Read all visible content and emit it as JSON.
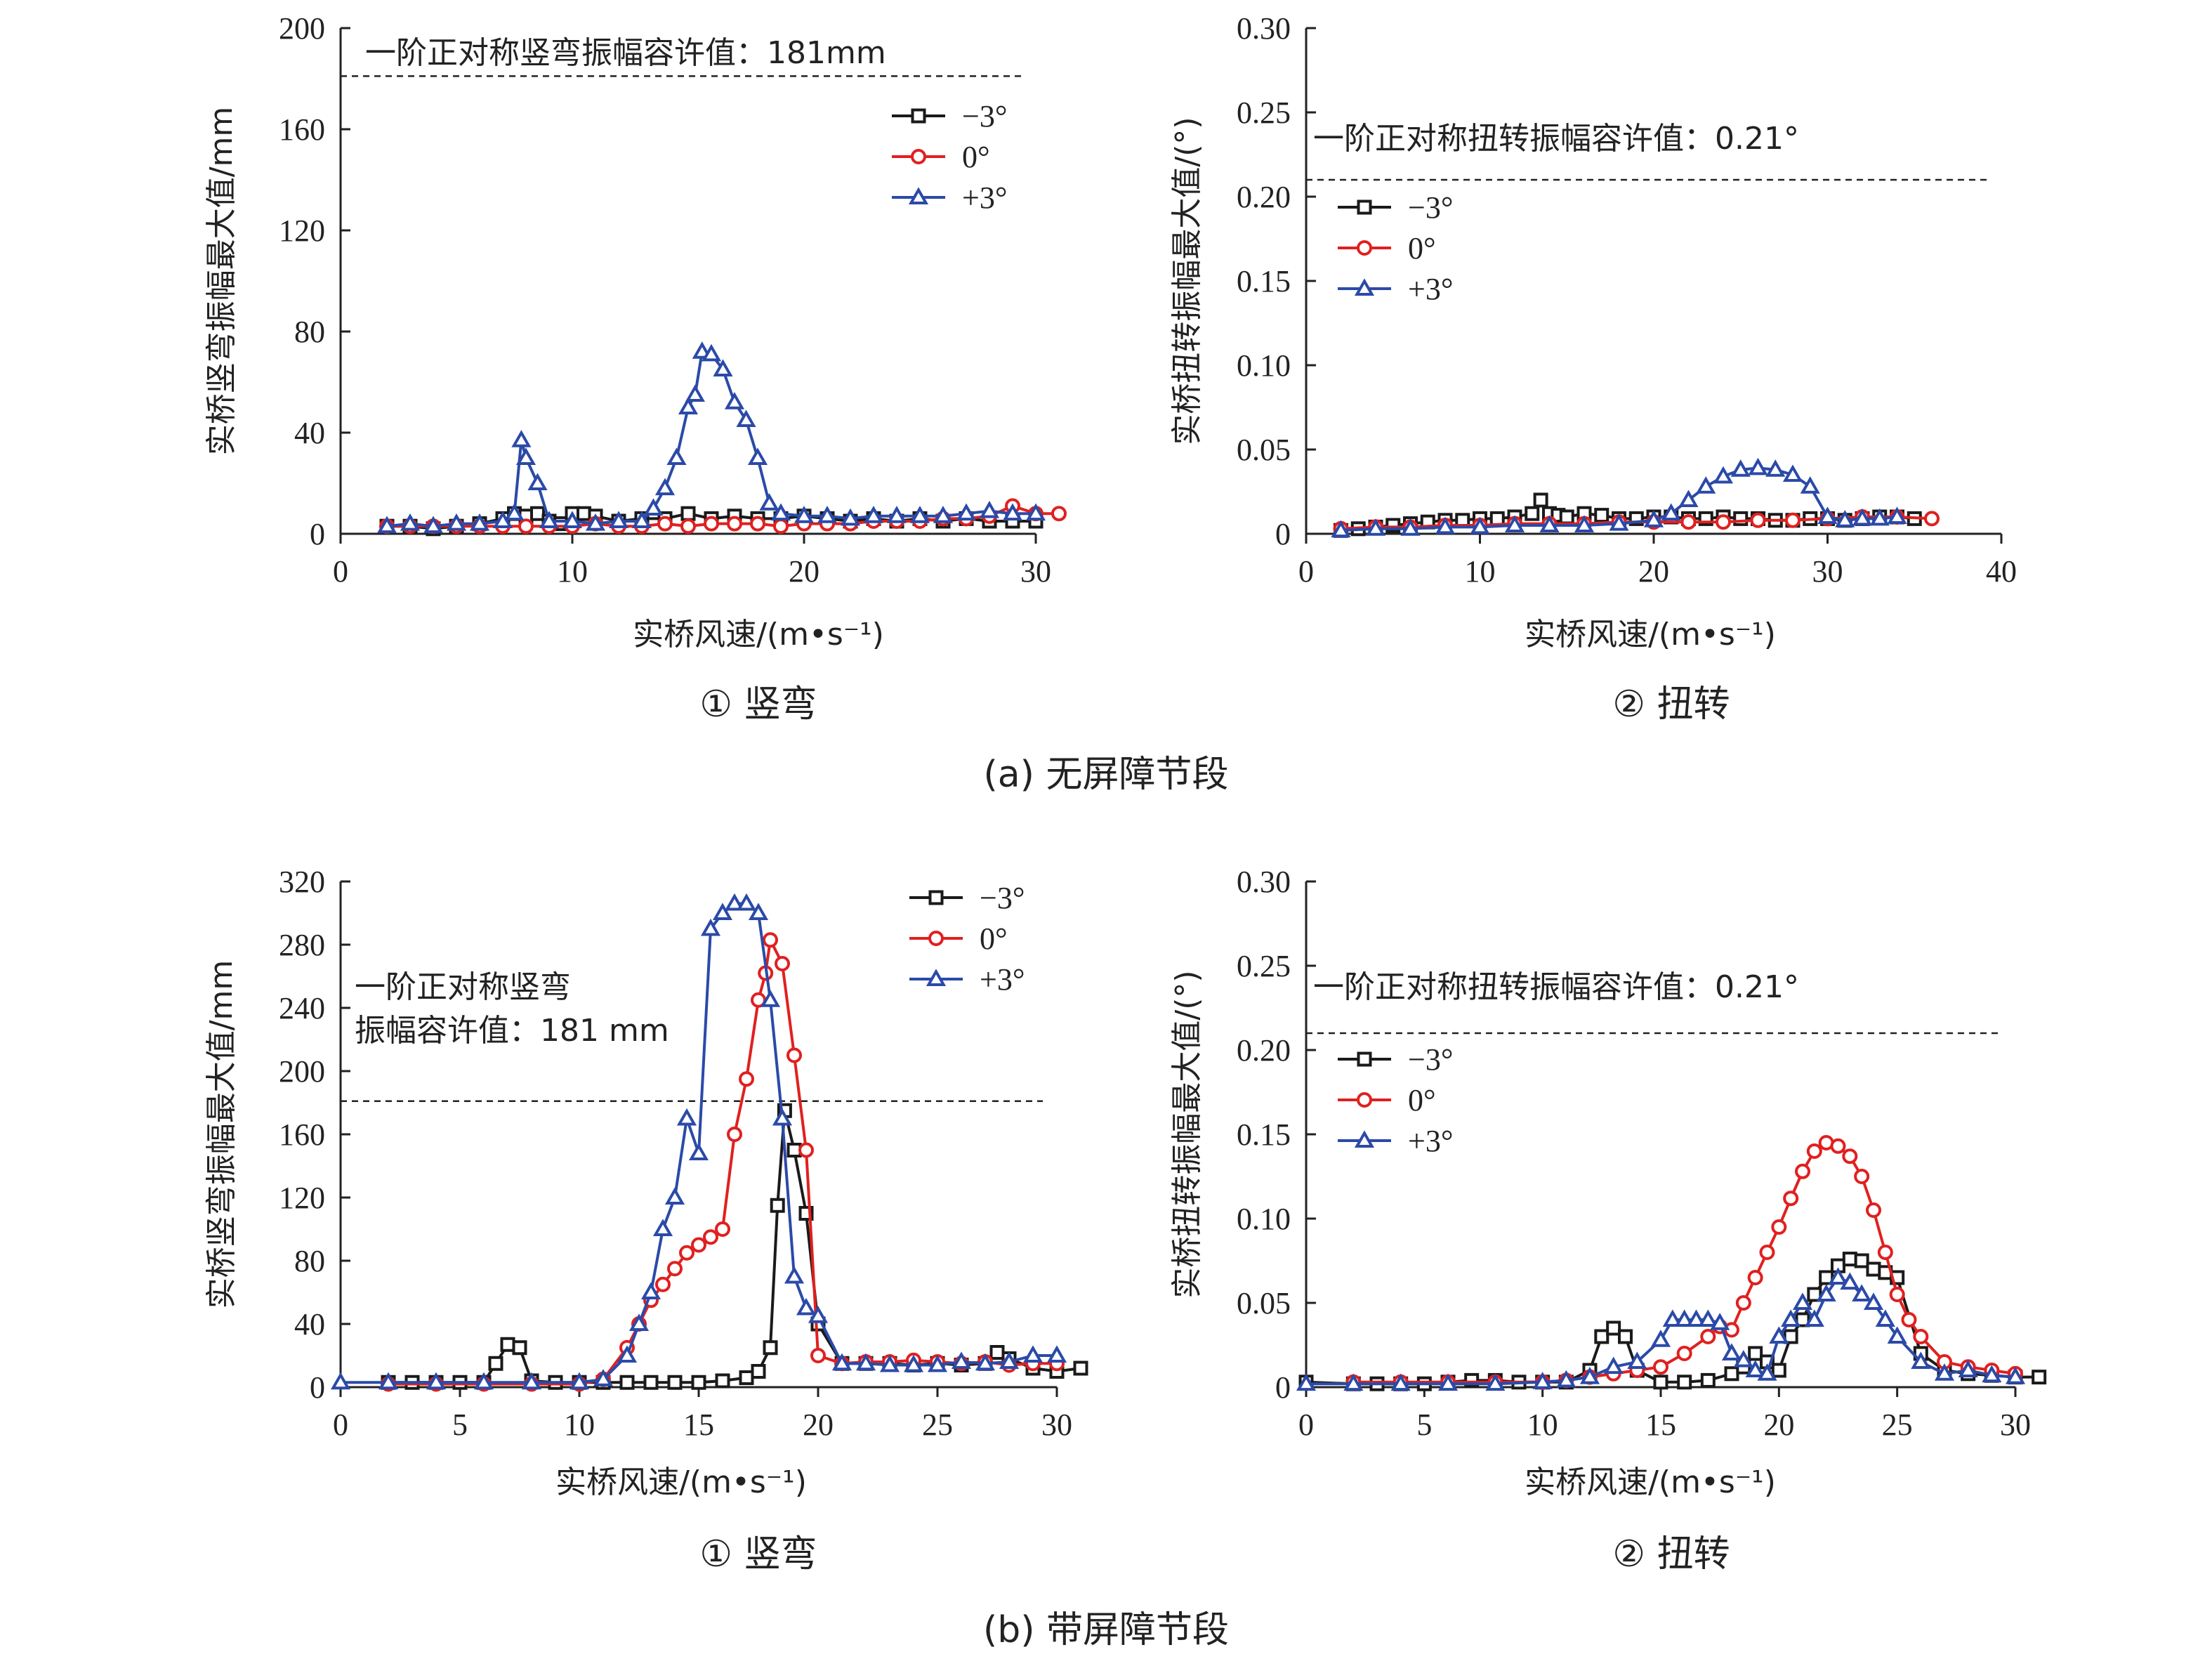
{
  "figure": {
    "caption_a": "(a) 无屏障节段",
    "caption_b": "(b) 带屏障节段"
  },
  "chart_data": [
    {
      "type": "line",
      "panel": "a1",
      "subtitle": "① 竖弯",
      "xlabel": "实桥风速/(m•s⁻¹)",
      "ylabel": "实桥竖弯振幅最大值/mm",
      "xlim": [
        0,
        30
      ],
      "ylim": [
        0,
        200
      ],
      "xticks": [
        0,
        10,
        20,
        30
      ],
      "yticks": [
        0,
        40,
        80,
        120,
        160,
        200
      ],
      "threshold": {
        "value": 181,
        "label": "一阶正对称竖弯振幅容许值：181mm"
      },
      "legend_position": "top-right",
      "series": [
        {
          "name": "−3°",
          "color": "#1a1a1a",
          "marker": "square",
          "x": [
            2,
            3,
            4,
            5,
            6,
            7,
            7.5,
            8,
            8.5,
            9,
            9.5,
            10,
            10.5,
            11,
            12,
            13,
            14,
            15,
            16,
            17,
            18,
            19,
            20,
            21,
            22,
            23,
            24,
            25,
            26,
            27,
            28,
            29,
            30
          ],
          "y": [
            3,
            3,
            2,
            3,
            4,
            6,
            8,
            7,
            8,
            5,
            4,
            8,
            8,
            7,
            5,
            6,
            6,
            8,
            6,
            7,
            6,
            6,
            7,
            6,
            5,
            6,
            5,
            6,
            5,
            6,
            5,
            5,
            5
          ]
        },
        {
          "name": "0°",
          "color": "#e02020",
          "marker": "circle",
          "x": [
            2,
            3,
            4,
            5,
            6,
            7,
            8,
            9,
            10,
            11,
            12,
            13,
            14,
            15,
            16,
            17,
            18,
            19,
            20,
            21,
            22,
            23,
            24,
            25,
            26,
            27,
            28,
            29,
            30,
            31
          ],
          "y": [
            3,
            3,
            3,
            3,
            3,
            3,
            3,
            3,
            3,
            4,
            3,
            3,
            4,
            3,
            4,
            4,
            4,
            3,
            4,
            4,
            4,
            5,
            5,
            5,
            6,
            6,
            7,
            11,
            8,
            8
          ]
        },
        {
          "name": "+3°",
          "color": "#2b4aa8",
          "marker": "triangle",
          "x": [
            2,
            3,
            4,
            5,
            6,
            7,
            7.5,
            7.8,
            8,
            8.5,
            9,
            10,
            11,
            12,
            13,
            13.5,
            14,
            14.5,
            15,
            15.3,
            15.6,
            16,
            16.5,
            17,
            17.5,
            18,
            18.5,
            19,
            20,
            21,
            22,
            23,
            24,
            25,
            26,
            27,
            28,
            29,
            30
          ],
          "y": [
            3,
            4,
            3,
            4,
            4,
            5,
            8,
            37,
            30,
            20,
            5,
            5,
            4,
            5,
            5,
            10,
            18,
            30,
            50,
            55,
            72,
            71,
            65,
            52,
            45,
            30,
            12,
            8,
            7,
            7,
            6,
            7,
            7,
            7,
            7,
            8,
            9,
            8,
            8
          ]
        }
      ]
    },
    {
      "type": "line",
      "panel": "a2",
      "subtitle": "② 扭转",
      "xlabel": "实桥风速/(m•s⁻¹)",
      "ylabel": "实桥扭转振幅最大值/(°)",
      "xlim": [
        0,
        40
      ],
      "ylim": [
        0,
        0.3
      ],
      "xticks": [
        0,
        10,
        20,
        30,
        40
      ],
      "yticks": [
        0,
        0.05,
        0.1,
        0.15,
        0.2,
        0.25,
        0.3
      ],
      "ytick_labels": [
        "0",
        "0.05",
        "0.10",
        "0.15",
        "0.20",
        "0.25",
        "0.30"
      ],
      "threshold": {
        "value": 0.21,
        "label": "一阶正对称扭转振幅容许值：0.21°"
      },
      "legend_position": "top-left",
      "series": [
        {
          "name": "−3°",
          "color": "#1a1a1a",
          "marker": "square",
          "x": [
            2,
            3,
            4,
            5,
            6,
            7,
            8,
            9,
            10,
            11,
            12,
            13,
            13.5,
            14,
            14.5,
            15,
            16,
            17,
            18,
            19,
            20,
            21,
            22,
            23,
            24,
            25,
            26,
            27,
            28,
            29,
            30,
            31,
            32,
            33,
            34,
            35
          ],
          "y": [
            0.002,
            0.003,
            0.004,
            0.005,
            0.006,
            0.007,
            0.008,
            0.008,
            0.009,
            0.009,
            0.01,
            0.012,
            0.02,
            0.012,
            0.011,
            0.01,
            0.012,
            0.011,
            0.009,
            0.009,
            0.01,
            0.01,
            0.009,
            0.009,
            0.01,
            0.009,
            0.009,
            0.008,
            0.008,
            0.009,
            0.009,
            0.008,
            0.009,
            0.01,
            0.01,
            0.009
          ]
        },
        {
          "name": "0°",
          "color": "#e02020",
          "marker": "circle",
          "x": [
            2,
            4,
            6,
            8,
            10,
            12,
            14,
            16,
            18,
            20,
            22,
            24,
            26,
            28,
            30,
            32,
            34,
            36
          ],
          "y": [
            0.003,
            0.004,
            0.004,
            0.005,
            0.005,
            0.006,
            0.006,
            0.006,
            0.007,
            0.007,
            0.007,
            0.007,
            0.008,
            0.008,
            0.009,
            0.01,
            0.01,
            0.009
          ]
        },
        {
          "name": "+3°",
          "color": "#2b4aa8",
          "marker": "triangle",
          "x": [
            2,
            4,
            6,
            8,
            10,
            12,
            14,
            16,
            18,
            20,
            21,
            22,
            23,
            24,
            25,
            26,
            27,
            28,
            29,
            30,
            31,
            32,
            33,
            34
          ],
          "y": [
            0.002,
            0.003,
            0.003,
            0.004,
            0.004,
            0.005,
            0.005,
            0.005,
            0.006,
            0.008,
            0.012,
            0.02,
            0.028,
            0.034,
            0.038,
            0.039,
            0.038,
            0.035,
            0.028,
            0.01,
            0.008,
            0.009,
            0.009,
            0.01
          ]
        }
      ]
    },
    {
      "type": "line",
      "panel": "b1",
      "subtitle": "① 竖弯",
      "xlabel": "实桥风速/(m•s⁻¹)",
      "ylabel": "实桥竖弯振幅最大值/mm",
      "xlim": [
        0,
        30
      ],
      "ylim": [
        0,
        320
      ],
      "xticks": [
        0,
        5,
        10,
        15,
        20,
        25,
        30
      ],
      "yticks": [
        0,
        40,
        80,
        120,
        160,
        200,
        240,
        280,
        320
      ],
      "threshold": {
        "value": 181,
        "label_line1": "一阶正对称竖弯",
        "label_line2": "振幅容许值：181 mm"
      },
      "legend_position": "top-right",
      "series": [
        {
          "name": "−3°",
          "color": "#1a1a1a",
          "marker": "square",
          "x": [
            2,
            3,
            4,
            5,
            6,
            6.5,
            7,
            7.5,
            8,
            9,
            10,
            11,
            12,
            13,
            14,
            15,
            16,
            17,
            17.5,
            18,
            18.3,
            18.6,
            19,
            19.5,
            20,
            21,
            22,
            23,
            24,
            25,
            26,
            27,
            27.5,
            28,
            29,
            30,
            31
          ],
          "y": [
            3,
            3,
            3,
            3,
            3,
            15,
            27,
            25,
            4,
            3,
            3,
            3,
            3,
            3,
            3,
            3,
            4,
            6,
            10,
            25,
            115,
            175,
            150,
            110,
            40,
            15,
            15,
            15,
            14,
            15,
            14,
            15,
            22,
            18,
            12,
            10,
            12
          ]
        },
        {
          "name": "0°",
          "color": "#e02020",
          "marker": "circle",
          "x": [
            2,
            4,
            6,
            8,
            10,
            11,
            12,
            12.5,
            13,
            13.5,
            14,
            14.5,
            15,
            15.5,
            16,
            16.5,
            17,
            17.5,
            17.8,
            18,
            18.5,
            19,
            19.5,
            20,
            21,
            22,
            23,
            24,
            25,
            26,
            27,
            28,
            29,
            30
          ],
          "y": [
            2,
            2,
            2,
            2,
            2,
            5,
            25,
            40,
            55,
            65,
            75,
            85,
            90,
            95,
            100,
            160,
            195,
            245,
            262,
            283,
            268,
            210,
            150,
            20,
            15,
            16,
            16,
            17,
            16,
            15,
            16,
            14,
            15,
            15
          ]
        },
        {
          "name": "+3°",
          "color": "#2b4aa8",
          "marker": "triangle",
          "x": [
            0,
            2,
            4,
            6,
            8,
            10,
            11,
            12,
            12.5,
            13,
            13.5,
            14,
            14.5,
            15,
            15.5,
            16,
            16.5,
            17,
            17.5,
            18,
            18.5,
            19,
            19.5,
            20,
            21,
            22,
            23,
            24,
            25,
            26,
            27,
            28,
            29,
            30
          ],
          "y": [
            3,
            3,
            3,
            3,
            3,
            3,
            5,
            20,
            40,
            60,
            100,
            120,
            170,
            148,
            290,
            300,
            306,
            306,
            300,
            245,
            170,
            70,
            50,
            45,
            15,
            15,
            14,
            14,
            14,
            16,
            15,
            16,
            20,
            20
          ]
        }
      ]
    },
    {
      "type": "line",
      "panel": "b2",
      "subtitle": "② 扭转",
      "xlabel": "实桥风速/(m•s⁻¹)",
      "ylabel": "实桥扭转振幅最大值/(°)",
      "xlim": [
        0,
        30
      ],
      "ylim": [
        0,
        0.3
      ],
      "xticks": [
        0,
        5,
        10,
        15,
        20,
        25,
        30
      ],
      "yticks": [
        0,
        0.05,
        0.1,
        0.15,
        0.2,
        0.25,
        0.3
      ],
      "ytick_labels": [
        "0",
        "0.05",
        "0.10",
        "0.15",
        "0.20",
        "0.25",
        "0.30"
      ],
      "threshold": {
        "value": 0.21,
        "label": "一阶正对称扭转振幅容许值：0.21°"
      },
      "legend_position": "top-left",
      "series": [
        {
          "name": "−3°",
          "color": "#1a1a1a",
          "marker": "square",
          "x": [
            0,
            2,
            3,
            4,
            5,
            6,
            7,
            8,
            9,
            10,
            11,
            12,
            12.5,
            13,
            13.5,
            14,
            15,
            16,
            17,
            18,
            18.5,
            19,
            19.5,
            20,
            20.5,
            21,
            21.5,
            22,
            22.5,
            23,
            23.5,
            24,
            24.5,
            25,
            26,
            27,
            28,
            29,
            30,
            31
          ],
          "y": [
            0.003,
            0.002,
            0.002,
            0.002,
            0.002,
            0.003,
            0.004,
            0.004,
            0.003,
            0.003,
            0.003,
            0.01,
            0.03,
            0.035,
            0.03,
            0.01,
            0.003,
            0.003,
            0.004,
            0.008,
            0.012,
            0.02,
            0.015,
            0.01,
            0.03,
            0.04,
            0.055,
            0.065,
            0.072,
            0.076,
            0.075,
            0.07,
            0.068,
            0.065,
            0.02,
            0.01,
            0.008,
            0.007,
            0.006,
            0.006
          ]
        },
        {
          "name": "0°",
          "color": "#e02020",
          "marker": "circle",
          "x": [
            2,
            4,
            6,
            8,
            10,
            11,
            12,
            13,
            14,
            15,
            16,
            17,
            17.5,
            18,
            18.5,
            19,
            19.5,
            20,
            20.5,
            21,
            21.5,
            22,
            22.5,
            23,
            23.5,
            24,
            24.5,
            25,
            25.5,
            26,
            27,
            28,
            29,
            30
          ],
          "y": [
            0.003,
            0.003,
            0.003,
            0.003,
            0.003,
            0.004,
            0.006,
            0.008,
            0.01,
            0.012,
            0.02,
            0.03,
            0.036,
            0.034,
            0.05,
            0.065,
            0.08,
            0.095,
            0.112,
            0.128,
            0.14,
            0.145,
            0.143,
            0.137,
            0.125,
            0.105,
            0.08,
            0.055,
            0.04,
            0.03,
            0.015,
            0.012,
            0.01,
            0.008
          ]
        },
        {
          "name": "+3°",
          "color": "#2b4aa8",
          "marker": "triangle",
          "x": [
            0,
            2,
            4,
            6,
            8,
            10,
            11,
            12,
            13,
            14,
            15,
            15.5,
            16,
            16.5,
            17,
            17.5,
            18,
            18.5,
            19,
            19.5,
            20,
            20.5,
            21,
            21.5,
            22,
            22.5,
            23,
            23.5,
            24,
            24.5,
            25,
            26,
            27,
            28,
            29,
            30
          ],
          "y": [
            0.002,
            0.002,
            0.002,
            0.002,
            0.002,
            0.003,
            0.004,
            0.006,
            0.012,
            0.015,
            0.028,
            0.04,
            0.04,
            0.04,
            0.04,
            0.038,
            0.02,
            0.016,
            0.01,
            0.008,
            0.03,
            0.04,
            0.05,
            0.04,
            0.055,
            0.065,
            0.062,
            0.055,
            0.05,
            0.04,
            0.03,
            0.015,
            0.008,
            0.01,
            0.007,
            0.006
          ]
        }
      ]
    }
  ]
}
